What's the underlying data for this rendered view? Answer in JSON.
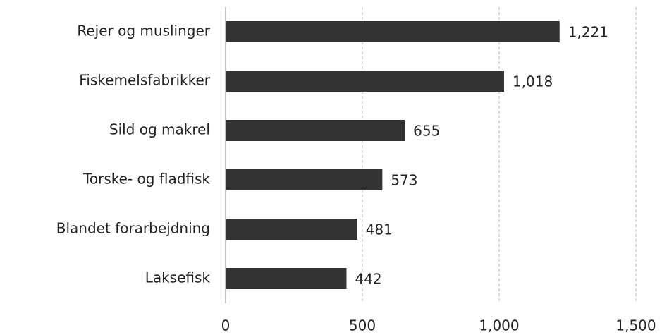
{
  "chart_data": {
    "type": "barh",
    "categories": [
      "Rejer og muslinger",
      "Fiskemelsfabrikker",
      "Sild og makrel",
      "Torske- og fladfisk",
      "Blandet forarbejdning",
      "Laksefisk"
    ],
    "values": [
      1221,
      1018,
      655,
      573,
      481,
      442
    ],
    "value_labels": [
      "1,221",
      "1,018",
      "655",
      "573",
      "481",
      "442"
    ],
    "color": "#333333",
    "xlim": [
      0,
      1500
    ],
    "xticks": [
      0,
      500,
      {
        "value": 1000,
        "label": "1,000"
      },
      {
        "value": 1500,
        "label": "1,500"
      }
    ],
    "grid": true
  }
}
